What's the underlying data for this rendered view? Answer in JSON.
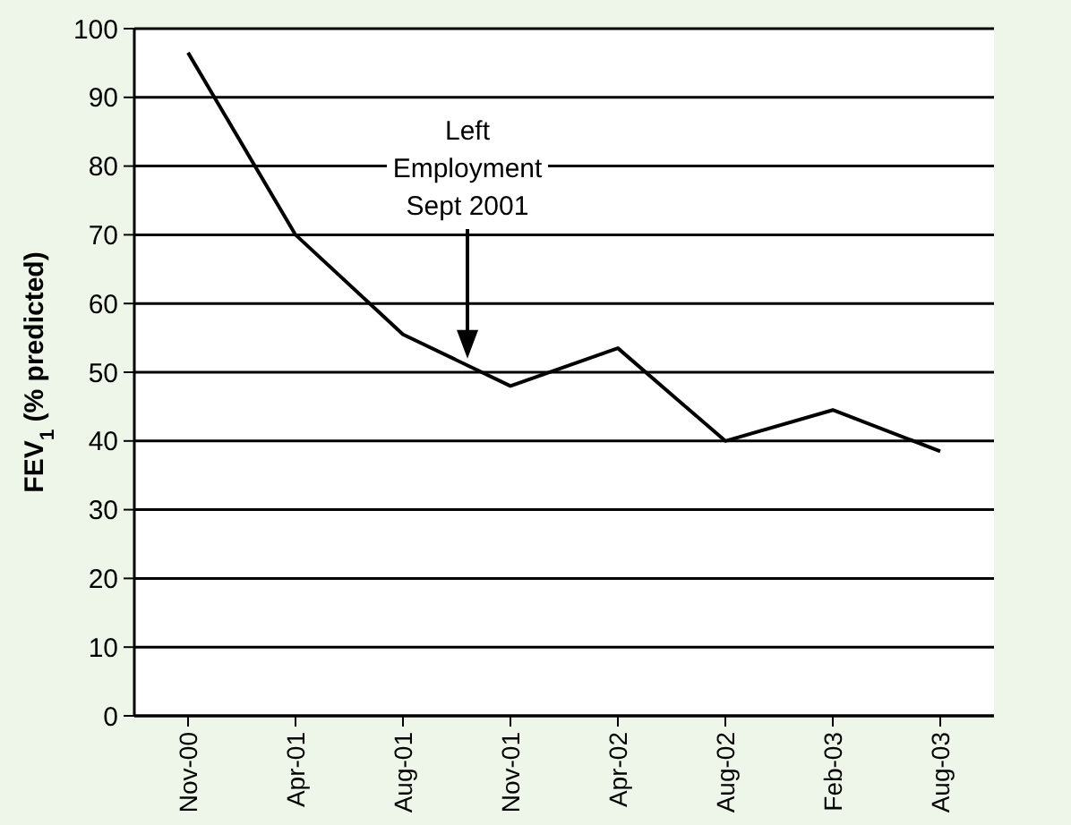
{
  "chart_data": {
    "type": "line",
    "ylabel": "FEV$_{1}$ (% predicted)",
    "categories": [
      "Nov-00",
      "Apr-01",
      "Aug-01",
      "Nov-01",
      "Apr-02",
      "Aug-02",
      "Feb-03",
      "Aug-03"
    ],
    "series": [
      {
        "color": "#000000",
        "values": [
          96.5,
          70,
          55.5,
          48,
          53.5,
          40,
          44.5,
          38.5
        ]
      }
    ],
    "ylim": [
      0,
      100
    ],
    "yticks": [
      0,
      10,
      20,
      30,
      40,
      50,
      60,
      70,
      80,
      90,
      100
    ],
    "grid": "y",
    "marker": "none",
    "line_style": "solid",
    "annotations": [
      "Left\nEmployment\nSept 2001"
    ]
  }
}
